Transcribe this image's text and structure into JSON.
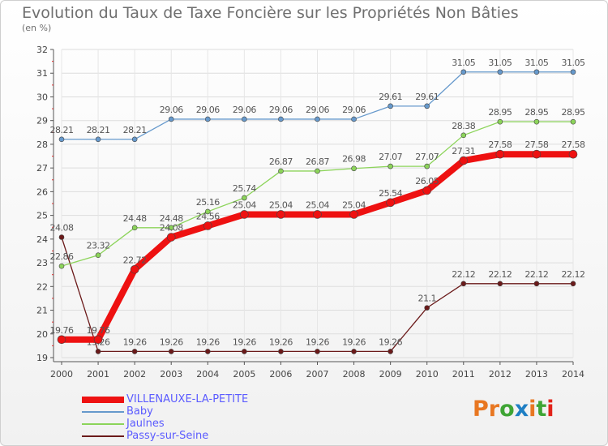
{
  "title": "Evolution du Taux de Taxe Foncière sur les Propriétés Non Bâties",
  "subtitle": "(en %)",
  "logo": {
    "text": "Proxiti",
    "colors": [
      "#e87722",
      "#e87722",
      "#3fa535",
      "#1f7fc4",
      "#e87722",
      "#3fa535",
      "#e2231a"
    ]
  },
  "chart_data": {
    "type": "line",
    "x": [
      "2000",
      "2001",
      "2002",
      "2003",
      "2004",
      "2005",
      "2006",
      "2007",
      "2008",
      "2009",
      "2010",
      "2011",
      "2012",
      "2013",
      "2014"
    ],
    "ylim": [
      19,
      32
    ],
    "yticks": [
      19,
      20,
      21,
      22,
      23,
      24,
      25,
      26,
      27,
      28,
      29,
      30,
      31,
      32
    ],
    "grid": true,
    "legend_position": "bottom-left",
    "series": [
      {
        "name": "Passy-sur-Seine",
        "color": "#6b1a1a",
        "width": 1.3,
        "marker_r": 3,
        "values": [
          24.08,
          19.26,
          19.26,
          19.26,
          19.26,
          19.26,
          19.26,
          19.26,
          19.26,
          19.26,
          21.1,
          22.12,
          22.12,
          22.12,
          22.12
        ],
        "labels": [
          "24.08",
          "19.26",
          "19.26",
          "19.26",
          "19.26",
          "19.26",
          "19.26",
          "19.26",
          "19.26",
          "19.26",
          "21.1",
          "22.12",
          "22.12",
          "22.12",
          "22.12"
        ]
      },
      {
        "name": "Jaulnes",
        "color": "#8cd45a",
        "width": 1.3,
        "marker_r": 3,
        "values": [
          22.86,
          23.32,
          24.48,
          24.48,
          25.16,
          25.74,
          26.87,
          26.87,
          26.98,
          27.07,
          27.07,
          28.38,
          28.95,
          28.95,
          28.95
        ],
        "labels": [
          "22.86",
          "23.32",
          "24.48",
          "24.48",
          "25.16",
          "25.74",
          "26.87",
          "26.87",
          "26.98",
          "27.07",
          "27.07",
          "28.38",
          "28.95",
          "28.95",
          "28.95"
        ]
      },
      {
        "name": "Baby",
        "color": "#6699cc",
        "width": 1.3,
        "marker_r": 3,
        "values": [
          28.21,
          28.21,
          28.21,
          29.06,
          29.06,
          29.06,
          29.06,
          29.06,
          29.06,
          29.61,
          29.61,
          31.05,
          31.05,
          31.05,
          31.05
        ],
        "labels": [
          "28.21",
          "28.21",
          "28.21",
          "29.06",
          "29.06",
          "29.06",
          "29.06",
          "29.06",
          "29.06",
          "29.61",
          "29.61",
          "31.05",
          "31.05",
          "31.05",
          "31.05"
        ]
      },
      {
        "name": "VILLENAUXE-LA-PETITE",
        "color": "#ee1111",
        "width": 8,
        "marker_r": 5,
        "values": [
          19.76,
          19.76,
          22.72,
          24.08,
          24.56,
          25.04,
          25.04,
          25.04,
          25.04,
          25.54,
          26.05,
          27.31,
          27.58,
          27.58,
          27.58
        ],
        "labels": [
          "19.76",
          "19.76",
          "22.72",
          "24.08",
          "24.56",
          "25.04",
          "25.04",
          "25.04",
          "25.04",
          "25.54",
          "26.05",
          "27.31",
          "27.58",
          "27.58",
          "27.58"
        ]
      }
    ],
    "legend": [
      "VILLENAUXE-LA-PETITE",
      "Baby",
      "Jaulnes",
      "Passy-sur-Seine"
    ]
  }
}
